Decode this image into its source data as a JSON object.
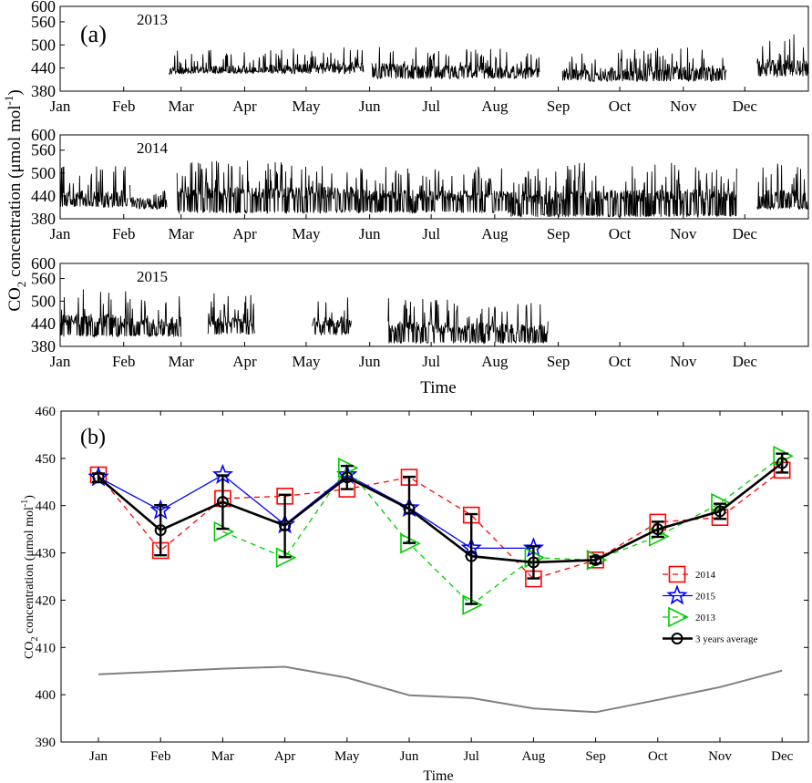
{
  "chart_data": [
    {
      "type": "line",
      "panel_label": "(a)",
      "year": "2013",
      "ylim": [
        380,
        600
      ],
      "yticks": [
        380,
        440,
        500,
        560,
        600
      ],
      "month_ticks": [
        "Jan",
        "Feb",
        "Mar",
        "Apr",
        "May",
        "Jun",
        "Jul",
        "Aug",
        "Sep",
        "Oct",
        "Nov",
        "Dec"
      ],
      "segments": [
        {
          "start_day": 53,
          "end_day": 148,
          "base": 425,
          "level": 440,
          "amp": 34,
          "trend": 12
        },
        {
          "start_day": 152,
          "end_day": 234,
          "base": 412,
          "level": 438,
          "amp": 38,
          "trend": -10
        },
        {
          "start_day": 245,
          "end_day": 325,
          "base": 405,
          "level": 432,
          "amp": 40,
          "trend": 10
        },
        {
          "start_day": 340,
          "end_day": 365,
          "base": 418,
          "level": 448,
          "amp": 55,
          "trend": -8
        }
      ]
    },
    {
      "type": "line",
      "year": "2014",
      "ylim": [
        380,
        600
      ],
      "yticks": [
        380,
        440,
        500,
        560,
        600
      ],
      "month_ticks": [
        "Jan",
        "Feb",
        "Mar",
        "Apr",
        "May",
        "Jun",
        "Jul",
        "Aug",
        "Sep",
        "Oct",
        "Nov",
        "Dec"
      ],
      "segments": [
        {
          "start_day": 0,
          "end_day": 33,
          "base": 410,
          "level": 440,
          "amp": 55,
          "trend": 0
        },
        {
          "start_day": 34,
          "end_day": 52,
          "base": 405,
          "level": 425,
          "amp": 35,
          "trend": -8
        },
        {
          "start_day": 57,
          "end_day": 148,
          "base": 395,
          "level": 450,
          "amp": 55,
          "trend": 0
        },
        {
          "start_day": 148,
          "end_day": 220,
          "base": 395,
          "level": 442,
          "amp": 50,
          "trend": 0
        },
        {
          "start_day": 220,
          "end_day": 330,
          "base": 385,
          "level": 440,
          "amp": 60,
          "trend": 5
        },
        {
          "start_day": 340,
          "end_day": 365,
          "base": 405,
          "level": 440,
          "amp": 60,
          "trend": 0
        }
      ]
    },
    {
      "type": "line",
      "year": "2015",
      "ylim": [
        380,
        600
      ],
      "yticks": [
        380,
        440,
        500,
        560,
        600
      ],
      "month_ticks": [
        "Jan",
        "Feb",
        "Mar",
        "Apr",
        "May",
        "Jun",
        "Jul",
        "Aug",
        "Sep",
        "Oct",
        "Nov",
        "Dec"
      ],
      "xlabel": "Time",
      "segments": [
        {
          "start_day": 0,
          "end_day": 59,
          "base": 405,
          "level": 448,
          "amp": 60,
          "trend": -10
        },
        {
          "start_day": 72,
          "end_day": 95,
          "base": 410,
          "level": 445,
          "amp": 50,
          "trend": -5
        },
        {
          "start_day": 123,
          "end_day": 142,
          "base": 410,
          "level": 445,
          "amp": 50,
          "trend": 0
        },
        {
          "start_day": 160,
          "end_day": 238,
          "base": 388,
          "level": 430,
          "amp": 50,
          "trend": -8
        }
      ]
    },
    {
      "type": "line",
      "panel_label": "(b)",
      "xlabel": "Time",
      "categories": [
        "Jan",
        "Feb",
        "Mar",
        "Apr",
        "May",
        "Jun",
        "Jul",
        "Aug",
        "Sep",
        "Oct",
        "Nov",
        "Dec"
      ],
      "ylim": [
        390,
        460
      ],
      "yticks": [
        390,
        400,
        410,
        420,
        430,
        440,
        450,
        460
      ],
      "legend_position": "right",
      "series": [
        {
          "name": "2014",
          "marker": "square",
          "color": "#ff0000",
          "dash": "6,5",
          "values": [
            446.5,
            430.5,
            441.5,
            442,
            443.5,
            446,
            438,
            424.5,
            428.5,
            436.5,
            437.5,
            447.5
          ]
        },
        {
          "name": "2015",
          "marker": "star",
          "color": "#0000ff",
          "dash": "",
          "values": [
            446,
            439,
            446.5,
            436,
            446.5,
            439.5,
            431,
            431,
            null,
            null,
            null,
            null
          ]
        },
        {
          "name": "2013",
          "marker": "triangle-right",
          "color": "#00cc00",
          "dash": "6,5",
          "values": [
            null,
            null,
            434.5,
            429,
            448,
            432,
            419,
            429,
            428.5,
            433.5,
            440.5,
            450.5
          ]
        },
        {
          "name": "3 years average",
          "marker": "circle",
          "color": "#000000",
          "dash": "",
          "values": [
            446,
            434.8,
            440.8,
            435.8,
            446,
            439.3,
            429.3,
            428,
            428.5,
            435,
            438.8,
            449
          ],
          "error_low": [
            445,
            429.5,
            435.1,
            429.1,
            443.5,
            432.1,
            419.2,
            424.6,
            427.8,
            433.4,
            437.2,
            447
          ],
          "error_high": [
            446.8,
            440.1,
            446.4,
            442.3,
            448.4,
            446.1,
            438.2,
            431.4,
            429.2,
            436.6,
            440.4,
            451
          ]
        },
        {
          "name": "",
          "marker": "none",
          "color": "#808080",
          "dash": "",
          "values": [
            404.3,
            404.9,
            405.5,
            405.9,
            403.6,
            399.9,
            399.3,
            397.1,
            396.3,
            398.9,
            401.6,
            405.1
          ]
        }
      ]
    }
  ],
  "ylabel_top_text": "CO",
  "ylabel_top_sub": "2",
  "ylabel_top_rest": " concentration (μmol mol",
  "ylabel_top_sup": "-1",
  "ylabel_top_close": ")",
  "ylabel_bottom_text": "CO",
  "ylabel_bottom_sub": "2",
  "ylabel_bottom_rest": " concentration (μmol mol",
  "ylabel_bottom_sup": "-1",
  "ylabel_bottom_close": ")"
}
